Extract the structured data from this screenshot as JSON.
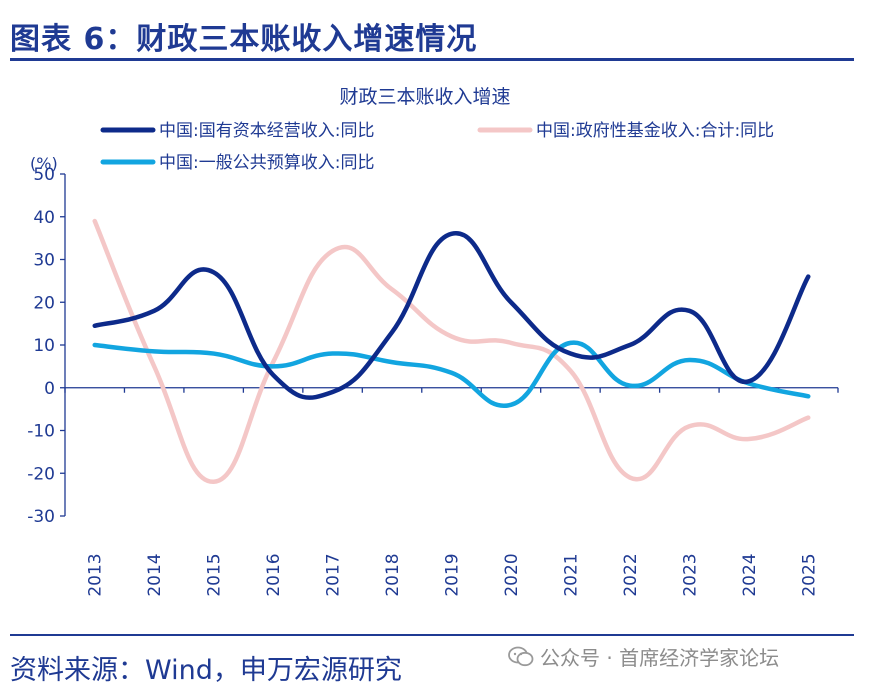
{
  "header": {
    "title": "图表 6：财政三本账收入增速情况"
  },
  "footer": {
    "source": "资料来源：Wind，申万宏源研究"
  },
  "watermark": {
    "text": "公众号 · 首席经济学家论坛",
    "icon": "wechat-icon"
  },
  "colors": {
    "brand": "#1f3a93",
    "series1": "#0d2a8a",
    "series2": "#f4c7c7",
    "series3": "#12a5e0",
    "axis": "#1f3a93"
  },
  "chart_data": {
    "type": "line",
    "title": "财政三本账收入增速",
    "ylabel": "(%)",
    "xlabel": "",
    "ylim": [
      -30,
      50
    ],
    "yticks": [
      50,
      40,
      30,
      20,
      10,
      0,
      -10,
      -20,
      -30
    ],
    "ytick_labels": [
      "50",
      "40",
      "30",
      "20",
      "10",
      "0",
      "-10",
      "-20",
      "-30"
    ],
    "categories": [
      "2013",
      "2014",
      "2015",
      "2016",
      "2017",
      "2018",
      "2019",
      "2020",
      "2021",
      "2022",
      "2023",
      "2024",
      "2025"
    ],
    "legend_position": "top",
    "series": [
      {
        "name": "中国:国有资本经营收入:同比",
        "color": "#0d2a8a",
        "values": [
          14.5,
          18,
          27,
          3,
          -1,
          13,
          36,
          20,
          8,
          10,
          18,
          1.5,
          26
        ]
      },
      {
        "name": "中国:政府性基金收入:合计:同比",
        "color": "#f4c7c7",
        "values": [
          39,
          5,
          -22,
          6,
          32,
          23,
          12,
          10.5,
          4,
          -21,
          -9,
          -12,
          -7
        ]
      },
      {
        "name": "中国:一般公共预算收入:同比",
        "color": "#12a5e0",
        "values": [
          10,
          8.5,
          8,
          5,
          8,
          6,
          3.5,
          -4,
          10.5,
          0.5,
          6.5,
          1,
          -2
        ]
      }
    ]
  }
}
